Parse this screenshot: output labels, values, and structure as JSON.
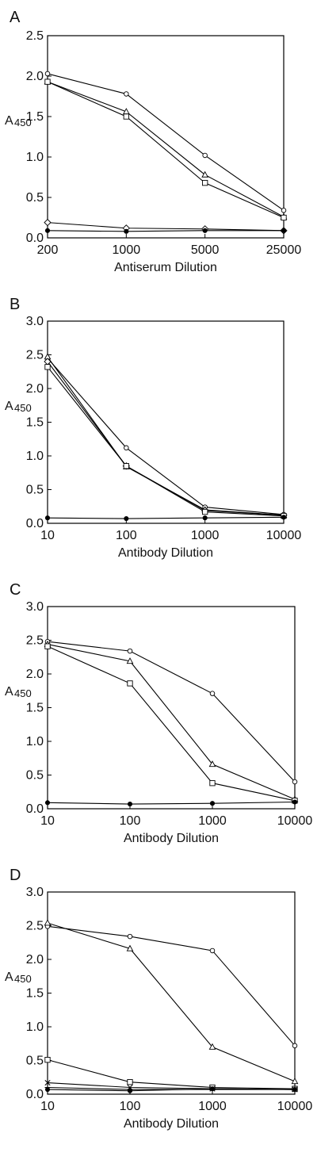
{
  "chart_data": [
    {
      "type": "line",
      "panel": "A",
      "x": [
        200,
        1000,
        5000,
        25000
      ],
      "x_tick_labels": [
        "200",
        "1000",
        "5000",
        "25000"
      ],
      "xlabel": "Antiserum Dilution",
      "ylabel": "A",
      "ylabel_sub": "450",
      "ylim": [
        0,
        2.5
      ],
      "y_ticks": [
        "0.0",
        "0.5",
        "1.0",
        "1.5",
        "2.0",
        "2.5"
      ],
      "x_scale": "log",
      "grid": false,
      "series": [
        {
          "marker": "circle-open",
          "values": [
            2.03,
            1.78,
            1.02,
            0.34
          ]
        },
        {
          "marker": "triangle-open",
          "values": [
            1.93,
            1.56,
            0.78,
            0.26
          ]
        },
        {
          "marker": "square-open",
          "values": [
            1.93,
            1.5,
            0.68,
            0.25
          ]
        },
        {
          "marker": "diamond-open",
          "values": [
            0.19,
            0.12,
            0.11,
            0.09
          ]
        },
        {
          "marker": "circle-filled",
          "values": [
            0.09,
            0.08,
            0.09,
            0.09
          ]
        }
      ]
    },
    {
      "type": "line",
      "panel": "B",
      "x": [
        10,
        100,
        1000,
        10000
      ],
      "x_tick_labels": [
        "10",
        "100",
        "1000",
        "10000"
      ],
      "xlabel": "Antibody Dilution",
      "ylabel": "A",
      "ylabel_sub": "450",
      "ylim": [
        0,
        3.0
      ],
      "y_ticks": [
        "0.0",
        "0.5",
        "1.0",
        "1.5",
        "2.0",
        "2.5",
        "3.0"
      ],
      "x_scale": "log",
      "grid": false,
      "series": [
        {
          "marker": "circle-open",
          "values": [
            2.45,
            1.12,
            0.24,
            0.13
          ]
        },
        {
          "marker": "triangle-open",
          "values": [
            2.47,
            0.84,
            0.2,
            0.12
          ]
        },
        {
          "marker": "diamond-open",
          "values": [
            2.4,
            0.85,
            0.19,
            0.12
          ]
        },
        {
          "marker": "square-open",
          "values": [
            2.32,
            0.85,
            0.17,
            0.11
          ]
        },
        {
          "marker": "circle-filled",
          "values": [
            0.08,
            0.07,
            0.08,
            0.09
          ]
        }
      ]
    },
    {
      "type": "line",
      "panel": "C",
      "x": [
        10,
        100,
        1000,
        10000
      ],
      "x_tick_labels": [
        "10",
        "100",
        "1000",
        "10000"
      ],
      "xlabel": "Antibody Dilution",
      "ylabel": "A",
      "ylabel_sub": "450",
      "ylim": [
        0,
        3.0
      ],
      "y_ticks": [
        "0.0",
        "0.5",
        "1.0",
        "1.5",
        "2.0",
        "2.5",
        "3.0"
      ],
      "x_scale": "log",
      "grid": false,
      "series": [
        {
          "marker": "circle-open",
          "values": [
            2.48,
            2.34,
            1.71,
            0.4
          ]
        },
        {
          "marker": "triangle-open",
          "values": [
            2.44,
            2.19,
            0.66,
            0.14
          ]
        },
        {
          "marker": "square-open",
          "values": [
            2.41,
            1.86,
            0.38,
            0.12
          ]
        },
        {
          "marker": "circle-filled",
          "values": [
            0.09,
            0.07,
            0.08,
            0.1
          ]
        }
      ]
    },
    {
      "type": "line",
      "panel": "D",
      "x": [
        10,
        100,
        1000,
        10000
      ],
      "x_tick_labels": [
        "10",
        "100",
        "1000",
        "10000"
      ],
      "xlabel": "Antibody Dilution",
      "ylabel": "A",
      "ylabel_sub": "450",
      "ylim": [
        0,
        3.0
      ],
      "y_ticks": [
        "0.0",
        "0.5",
        "1.0",
        "1.5",
        "2.0",
        "2.5",
        "3.0"
      ],
      "x_scale": "log",
      "grid": false,
      "series": [
        {
          "marker": "circle-open",
          "values": [
            2.49,
            2.34,
            2.13,
            0.72
          ]
        },
        {
          "marker": "triangle-open",
          "values": [
            2.54,
            2.16,
            0.7,
            0.19
          ]
        },
        {
          "marker": "square-open",
          "values": [
            0.51,
            0.18,
            0.1,
            0.08
          ]
        },
        {
          "marker": "x",
          "values": [
            0.17,
            0.1,
            0.08,
            0.07
          ]
        },
        {
          "marker": "plus",
          "values": [
            0.1,
            0.07,
            0.07,
            0.07
          ]
        },
        {
          "marker": "circle-filled",
          "values": [
            0.07,
            0.05,
            0.08,
            0.07
          ]
        }
      ]
    }
  ]
}
